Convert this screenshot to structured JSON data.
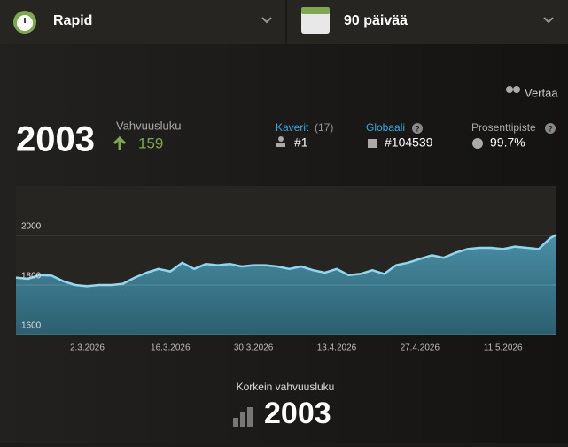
{
  "header": {
    "game_type": "Rapid",
    "period": "90 päivää"
  },
  "compare": "Vertaa",
  "rating": {
    "value": "2003",
    "label": "Vahvuusluku",
    "change": "159"
  },
  "stats": {
    "friends": {
      "label": "Kaverit",
      "count": "(17)",
      "rank": "#1"
    },
    "global": {
      "label": "Globaali",
      "help": "?",
      "rank": "#104539"
    },
    "percentile": {
      "label": "Prosenttipiste",
      "help": "?",
      "value": "99.7%"
    }
  },
  "highest": {
    "label": "Korkein vahvuusluku",
    "value": "2003"
  },
  "chart_data": {
    "type": "area",
    "x": [
      "18.2.2026",
      "20.2.2026",
      "22.2.2026",
      "24.2.2026",
      "26.2.2026",
      "28.2.2026",
      "2.3.2026",
      "4.3.2026",
      "6.3.2026",
      "8.3.2026",
      "10.3.2026",
      "12.3.2026",
      "14.3.2026",
      "16.3.2026",
      "18.3.2026",
      "20.3.2026",
      "22.3.2026",
      "24.3.2026",
      "26.3.2026",
      "28.3.2026",
      "30.3.2026",
      "1.4.2026",
      "3.4.2026",
      "5.4.2026",
      "7.4.2026",
      "9.4.2026",
      "11.4.2026",
      "13.4.2026",
      "15.4.2026",
      "17.4.2026",
      "19.4.2026",
      "21.4.2026",
      "23.4.2026",
      "25.4.2026",
      "27.4.2026",
      "29.4.2026",
      "1.5.2026",
      "3.5.2026",
      "5.5.2026",
      "7.5.2026",
      "9.5.2026",
      "11.5.2026",
      "13.5.2026",
      "15.5.2026",
      "17.5.2026",
      "19.5.2026",
      "20.5.2026"
    ],
    "values": [
      1830,
      1825,
      1840,
      1838,
      1815,
      1800,
      1795,
      1800,
      1800,
      1805,
      1830,
      1850,
      1865,
      1855,
      1890,
      1865,
      1885,
      1880,
      1885,
      1875,
      1880,
      1880,
      1875,
      1865,
      1875,
      1860,
      1850,
      1865,
      1840,
      1845,
      1860,
      1845,
      1880,
      1890,
      1905,
      1920,
      1910,
      1930,
      1945,
      1950,
      1950,
      1945,
      1955,
      1950,
      1945,
      1990,
      2003
    ],
    "color": "#8fd6ee",
    "xlim": [
      "18.2.2026",
      "20.5.2026"
    ],
    "xticks": [
      "2.3.2026",
      "16.3.2026",
      "30.3.2026",
      "13.4.2026",
      "27.4.2026",
      "11.5.2026"
    ],
    "ylim": [
      1600,
      2200
    ],
    "yticks": [
      1600,
      1800,
      2000
    ],
    "grid": true
  }
}
